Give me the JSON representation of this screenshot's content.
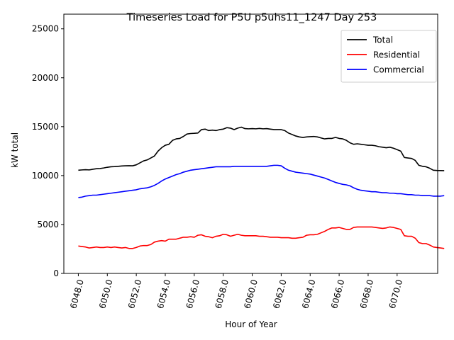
{
  "chart_data": {
    "type": "line",
    "title": "Timeseries Load for P5U p5uhs11_1247  Day 253",
    "xlabel": "Hour of Year",
    "ylabel": "kW total",
    "xlim": [
      6047.0,
      6072.8
    ],
    "ylim": [
      0,
      26500
    ],
    "xticks": [
      6048,
      6050,
      6052,
      6054,
      6056,
      6058,
      6060,
      6062,
      6064,
      6066,
      6068,
      6070
    ],
    "xtick_labels": [
      "6048.0",
      "6050.0",
      "6052.0",
      "6054.0",
      "6056.0",
      "6058.0",
      "6060.0",
      "6062.0",
      "6064.0",
      "6066.0",
      "6068.0",
      "6070.0"
    ],
    "yticks": [
      0,
      5000,
      10000,
      15000,
      20000,
      25000
    ],
    "ytick_labels": [
      "0",
      "5000",
      "10000",
      "15000",
      "20000",
      "25000"
    ],
    "grid": false,
    "legend_position": "top-right",
    "x_start": 6048.0,
    "x_step": 0.25,
    "series": [
      {
        "name": "Total",
        "color": "#000000",
        "values": [
          10550,
          10580,
          10600,
          10580,
          10650,
          10700,
          10720,
          10780,
          10850,
          10900,
          10920,
          10950,
          10980,
          11000,
          11010,
          11000,
          11100,
          11300,
          11500,
          11600,
          11800,
          12000,
          12500,
          12850,
          13100,
          13200,
          13600,
          13750,
          13800,
          14000,
          14250,
          14300,
          14320,
          14350,
          14700,
          14750,
          14600,
          14650,
          14600,
          14700,
          14750,
          14900,
          14850,
          14700,
          14850,
          14950,
          14800,
          14780,
          14800,
          14780,
          14820,
          14780,
          14800,
          14750,
          14700,
          14700,
          14700,
          14600,
          14350,
          14200,
          14050,
          13950,
          13900,
          13950,
          13980,
          14000,
          13950,
          13850,
          13750,
          13800,
          13800,
          13900,
          13800,
          13750,
          13600,
          13350,
          13200,
          13250,
          13200,
          13150,
          13100,
          13100,
          13050,
          12950,
          12900,
          12850,
          12900,
          12800,
          12650,
          12500,
          11850,
          11800,
          11750,
          11550,
          11050,
          10950,
          10900,
          10750,
          10550,
          10520,
          10510,
          10500
        ]
      },
      {
        "name": "Residential",
        "color": "#ff0000",
        "values": [
          2800,
          2750,
          2700,
          2600,
          2650,
          2700,
          2650,
          2650,
          2700,
          2650,
          2700,
          2650,
          2600,
          2650,
          2550,
          2550,
          2650,
          2800,
          2850,
          2850,
          2950,
          3200,
          3300,
          3350,
          3300,
          3500,
          3500,
          3500,
          3600,
          3700,
          3700,
          3750,
          3700,
          3900,
          3950,
          3800,
          3750,
          3650,
          3800,
          3850,
          4000,
          3950,
          3800,
          3900,
          4000,
          3900,
          3850,
          3850,
          3850,
          3850,
          3800,
          3800,
          3750,
          3700,
          3700,
          3700,
          3650,
          3650,
          3650,
          3600,
          3600,
          3650,
          3700,
          3900,
          3950,
          3950,
          4000,
          4150,
          4300,
          4500,
          4650,
          4650,
          4700,
          4600,
          4500,
          4500,
          4700,
          4750,
          4750,
          4750,
          4750,
          4750,
          4700,
          4650,
          4600,
          4650,
          4750,
          4700,
          4600,
          4500,
          3850,
          3800,
          3800,
          3600,
          3150,
          3050,
          3050,
          2900,
          2700,
          2650,
          2600,
          2550
        ]
      },
      {
        "name": "Commercial",
        "color": "#0000ff",
        "values": [
          7750,
          7800,
          7900,
          7950,
          8000,
          8000,
          8050,
          8100,
          8150,
          8200,
          8250,
          8300,
          8350,
          8400,
          8450,
          8500,
          8550,
          8650,
          8700,
          8750,
          8850,
          9000,
          9200,
          9450,
          9650,
          9800,
          9950,
          10100,
          10200,
          10350,
          10450,
          10550,
          10600,
          10650,
          10700,
          10750,
          10800,
          10850,
          10900,
          10900,
          10900,
          10900,
          10900,
          10950,
          10950,
          10950,
          10950,
          10950,
          10950,
          10950,
          10950,
          10950,
          10950,
          11000,
          11050,
          11050,
          11000,
          10750,
          10550,
          10450,
          10350,
          10300,
          10250,
          10200,
          10150,
          10050,
          9950,
          9850,
          9750,
          9600,
          9450,
          9300,
          9200,
          9100,
          9050,
          8950,
          8750,
          8600,
          8500,
          8450,
          8400,
          8350,
          8350,
          8300,
          8250,
          8250,
          8200,
          8200,
          8150,
          8150,
          8100,
          8050,
          8050,
          8000,
          8000,
          7950,
          7950,
          7950,
          7900,
          7900,
          7900,
          7950
        ]
      }
    ]
  }
}
